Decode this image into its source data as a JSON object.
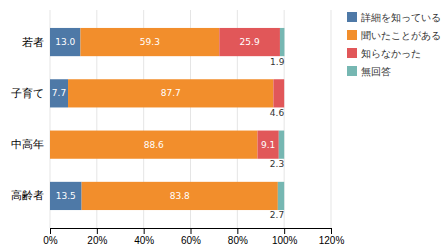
{
  "chart_data": {
    "type": "bar",
    "orientation": "horizontal",
    "stacked": true,
    "categories": [
      "若者",
      "子育て",
      "中高年",
      "高齢者"
    ],
    "series": [
      {
        "name": "詳細を知っている",
        "values": [
          13.0,
          7.7,
          0.0,
          13.5
        ],
        "value_labels": [
          "13.0",
          "7.7",
          null,
          "13.5"
        ]
      },
      {
        "name": "聞いたことがある",
        "values": [
          59.3,
          87.7,
          88.6,
          83.8
        ],
        "value_labels": [
          "59.3",
          "87.7",
          "88.6",
          "83.8"
        ]
      },
      {
        "name": "知らなかった",
        "values": [
          25.9,
          4.6,
          9.1,
          0.0
        ],
        "value_labels": [
          "25.9",
          "4.6",
          "9.1",
          null
        ]
      },
      {
        "name": "無回答",
        "values": [
          1.9,
          0.0,
          2.3,
          2.7
        ],
        "value_labels": [
          "1.9",
          null,
          "2.3",
          "2.7"
        ]
      }
    ],
    "xlim": [
      0,
      120
    ],
    "xticks": [
      {
        "value": 0,
        "label": "0%"
      },
      {
        "value": 20,
        "label": "20%"
      },
      {
        "value": 40,
        "label": "40%"
      },
      {
        "value": 60,
        "label": "60%"
      },
      {
        "value": 80,
        "label": "80%"
      },
      {
        "value": 100,
        "label": "100%"
      },
      {
        "value": 120,
        "label": "120%"
      }
    ],
    "grid": true,
    "legend": "right",
    "data_labels": true
  }
}
